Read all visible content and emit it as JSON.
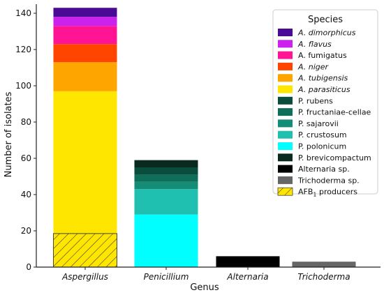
{
  "chart_data": {
    "type": "bar",
    "stacked": true,
    "categories": [
      "Aspergillus",
      "Penicillium",
      "Alternaria",
      "Trichoderma"
    ],
    "xlabel": "Genus",
    "ylabel": "Number of isolates",
    "ylim": [
      0,
      145
    ],
    "yticks": [
      0,
      20,
      40,
      60,
      80,
      100,
      120,
      140
    ],
    "grid": false,
    "legend": {
      "title": "Species",
      "position": "top-right"
    },
    "series": [
      {
        "name": "A. parasiticus",
        "color": "#FFE600",
        "italic": true,
        "values": [
          97,
          0,
          0,
          0
        ]
      },
      {
        "name": "A. tubigensis",
        "color": "#FFA500",
        "italic": true,
        "values": [
          16,
          0,
          0,
          0
        ]
      },
      {
        "name": "A. niger",
        "color": "#FF4500",
        "italic": true,
        "values": [
          10,
          0,
          0,
          0
        ]
      },
      {
        "name": "A. fumigatus",
        "color": "#FF1493",
        "italic": false,
        "values": [
          10,
          0,
          0,
          0
        ]
      },
      {
        "name": "A. flavus",
        "color": "#CC22EE",
        "italic": true,
        "values": [
          5,
          0,
          0,
          0
        ]
      },
      {
        "name": "A. dimorphicus",
        "color": "#4B0A96",
        "italic": true,
        "values": [
          5,
          0,
          0,
          0
        ]
      },
      {
        "name": "P. polonicum",
        "color": "#00FFFF",
        "italic": false,
        "values": [
          0,
          29,
          0,
          0
        ]
      },
      {
        "name": "P. crustosum",
        "color": "#20C0B0",
        "italic": false,
        "values": [
          0,
          14,
          0,
          0
        ]
      },
      {
        "name": "P. sajarovii",
        "color": "#138C78",
        "italic": false,
        "values": [
          0,
          4,
          0,
          0
        ]
      },
      {
        "name": "P. fructaniae-cellae",
        "color": "#0E6E5A",
        "italic": false,
        "values": [
          0,
          4,
          0,
          0
        ]
      },
      {
        "name": "P. rubens",
        "color": "#0B4D3C",
        "italic": false,
        "values": [
          0,
          4,
          0,
          0
        ]
      },
      {
        "name": "P. brevicompactum",
        "color": "#0A2A20",
        "italic": false,
        "values": [
          0,
          4,
          0,
          0
        ]
      },
      {
        "name": "Alternaria sp.",
        "color": "#000000",
        "italic": false,
        "values": [
          0,
          0,
          6,
          0
        ]
      },
      {
        "name": "Trichoderma sp.",
        "color": "#666666",
        "italic": false,
        "values": [
          0,
          0,
          0,
          3
        ]
      }
    ],
    "legend_order": [
      "A. dimorphicus",
      "A. flavus",
      "A. fumigatus",
      "A. niger",
      "A. tubigensis",
      "A. parasiticus",
      "P. rubens",
      "P. fructaniae-cellae",
      "P. sajarovii",
      "P. crustosum",
      "P. polonicum",
      "P. brevicompactum",
      "Alternaria sp.",
      "Trichoderma sp."
    ],
    "overlay": {
      "name": "AFB",
      "subscript": "1",
      "suffix": " producers",
      "category": "Aspergillus",
      "value": 18.5,
      "pattern": "hatched"
    }
  }
}
